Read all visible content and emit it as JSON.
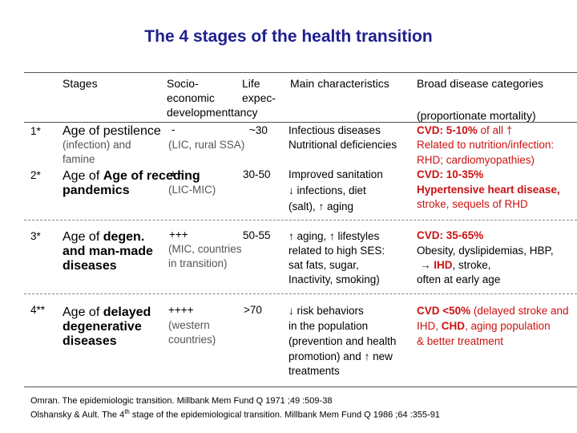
{
  "title": "The 4 stages of the health transition",
  "headers": {
    "stages": "Stages",
    "socio_1": "Socio-",
    "socio_2": "economic",
    "socio_3": "development",
    "life_1": "Life",
    "life_2": "expec-",
    "life_3": "tancy",
    "main": "Main characteristics",
    "broad": "Broad disease categories",
    "broad_sub": "(proportionate mortality)"
  },
  "rows": [
    {
      "num": "1*",
      "stage_1": "Age of pestilence",
      "stage_sub_1": "(infection) and",
      "stage_sub_2": "famine",
      "socio_1": "-",
      "socio_2": "(LIC, rural SSA)",
      "life": "~30",
      "main_1": "Infectious diseases",
      "main_2": "Nutritional deficiencies",
      "broad_1a": "CVD: 5-10%",
      "broad_1b": " of all †",
      "broad_2": "Related to nutrition/infection:",
      "broad_3": "RHD; cardiomyopathies)"
    },
    {
      "num": "2*",
      "stage_1": "Age of receding",
      "stage_2": "pandemics",
      "socio_1": "++",
      "socio_2": "(LIC-MIC)",
      "life": "30-50",
      "main_1": "Improved sanitation",
      "main_2": " infections, diet",
      "main_3": "(salt),  aging",
      "broad_1": "CVD: 10-35%",
      "broad_2": "Hypertensive heart disease,",
      "broad_3": "stroke, sequels of RHD"
    },
    {
      "num": "3*",
      "stage_1a": "Age of ",
      "stage_1b": "degen.",
      "stage_2": "and man-made",
      "stage_3": "diseases",
      "socio_1": "+++",
      "socio_2": "(MIC, countries",
      "socio_3": "in transition)",
      "life": "50-55",
      "main_1": " aging,  lifestyles",
      "main_2": "related to high SES:",
      "main_3": "sat fats, sugar,",
      "main_4": "Inactivity, smoking)",
      "broad_1": "CVD: 35-65%",
      "broad_2": "Obesity, dyslipidemias, HBP,",
      "broad_3a": " IHD",
      "broad_3b": ", stroke,",
      "broad_4": "often at early age"
    },
    {
      "num": "4**",
      "stage_1a": "Age of ",
      "stage_1b": "delayed",
      "stage_2": "degenerative",
      "stage_3": "diseases",
      "socio_1": "++++",
      "socio_2": "(western",
      "socio_3": "countries)",
      "life": ">70",
      "main_1": " risk behaviors",
      "main_2": "in the population",
      "main_3": "(prevention and health",
      "main_4": "promotion) and  new",
      "main_5": "treatments",
      "broad_1a": "CVD <50%",
      "broad_1b": " (delayed stroke and",
      "broad_2a": "IHD, ",
      "broad_2b": "CHD",
      "broad_2c": ", aging population",
      "broad_3": "& better treatment"
    }
  ],
  "footnotes": [
    "Omran. The epidemiologic transition. Millbank Mem Fund Q 1971 ;49 :509-38",
    "Olshansky & Ault. The 4",
    "th",
    " stage of the epidemiological transition. Millbank Mem Fund Q 1986 ;64 :355-91"
  ],
  "colors": {
    "title": "#1f1f8f",
    "highlight": "#cc1111",
    "subtext": "#555555"
  },
  "icons": {
    "down": "↓",
    "up": "↑",
    "right": "→"
  }
}
